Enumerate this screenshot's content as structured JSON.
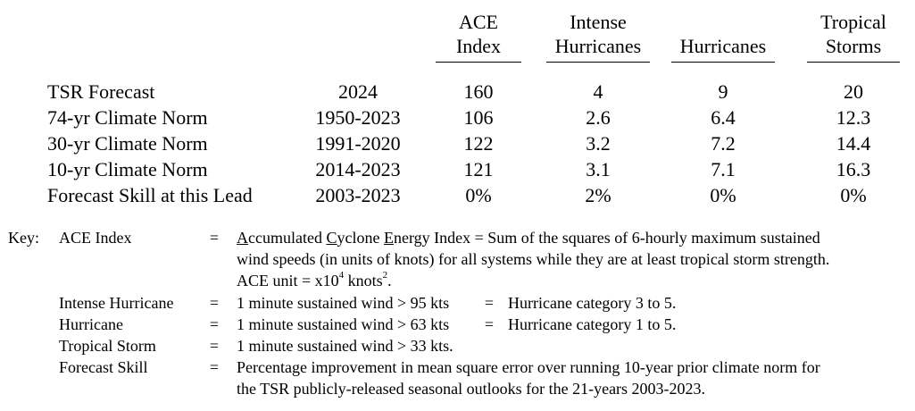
{
  "table": {
    "headers": [
      {
        "line1": "ACE",
        "line2": "Index"
      },
      {
        "line1": "Intense",
        "line2": "Hurricanes"
      },
      {
        "line1": "",
        "line2": "Hurricanes"
      },
      {
        "line1": "Tropical",
        "line2": "Storms"
      }
    ],
    "rows": [
      {
        "label": "TSR Forecast",
        "period": "2024",
        "ace": "160",
        "intense": "4",
        "hurricanes": "9",
        "storms": "20"
      },
      {
        "label": "74-yr Climate Norm",
        "period": "1950-2023",
        "ace": "106",
        "intense": "2.6",
        "hurricanes": "6.4",
        "storms": "12.3"
      },
      {
        "label": "30-yr Climate Norm",
        "period": "1991-2020",
        "ace": "122",
        "intense": "3.2",
        "hurricanes": "7.2",
        "storms": "14.4"
      },
      {
        "label": "10-yr Climate Norm",
        "period": "2014-2023",
        "ace": "121",
        "intense": "3.1",
        "hurricanes": "7.1",
        "storms": "16.3"
      },
      {
        "label": "Forecast Skill at this Lead",
        "period": "2003-2023",
        "ace": "0%",
        "intense": "2%",
        "hurricanes": "0%",
        "storms": "0%"
      }
    ]
  },
  "key": {
    "prefix": "Key:",
    "eq": "=",
    "ace_term": "ACE Index",
    "ace_def": {
      "a": "A",
      "a_rest": "ccumulated ",
      "c": "C",
      "c_rest": "yclone ",
      "e": "E",
      "e_rest": "nergy Index = Sum of the squares of 6-hourly maximum sustained",
      "line2": "wind speeds (in units of knots) for all systems while they are at least tropical storm strength.",
      "unit_pre": "ACE unit = x10",
      "unit_exp": "4",
      "unit_mid": " knots",
      "unit_exp2": "2",
      "unit_end": "."
    },
    "intense_term": "Intense Hurricane",
    "intense_def": "1 minute sustained wind > 95 kts",
    "intense_cat": "Hurricane category 3 to 5.",
    "hurricane_term": "Hurricane",
    "hurricane_def": "1 minute sustained wind > 63 kts",
    "hurricane_cat": "Hurricane category 1 to 5.",
    "storm_term": "Tropical Storm",
    "storm_def": "1 minute sustained wind > 33 kts.",
    "skill_term": "Forecast Skill",
    "skill_line1": "Percentage improvement in mean square error over running 10-year prior climate norm for",
    "skill_line2": "the TSR publicly-released seasonal outlooks for the 21-years 2003-2023."
  }
}
